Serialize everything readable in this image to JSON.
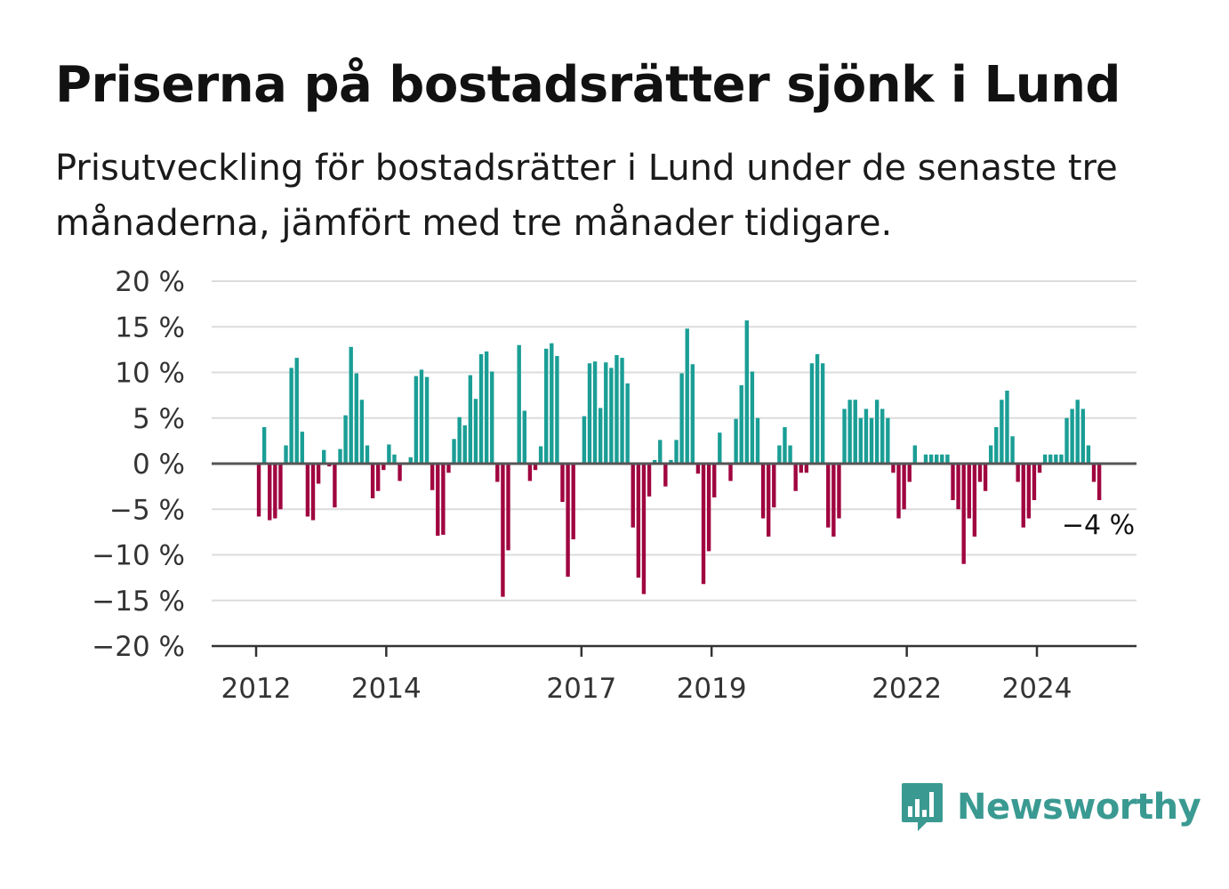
{
  "header": {
    "title": "Priserna på bostadsrätter sjönk i Lund",
    "subtitle": "Prisutveckling för bostadsrätter i Lund under de senaste tre månaderna, jämfört med tre månader tidigare."
  },
  "brand": {
    "name": "Newsworthy",
    "icon": "newsworthy-bar-chart-icon"
  },
  "colors": {
    "positive": "#1a9e96",
    "negative": "#a00540",
    "text": "#111111"
  },
  "chart_data": {
    "type": "bar",
    "title": "Priserna på bostadsrätter sjönk i Lund",
    "subtitle": "Prisutveckling för bostadsrätter i Lund under de senaste tre månaderna, jämfört med tre månader tidigare.",
    "ylim": [
      -20,
      20
    ],
    "yticks": [
      20,
      15,
      10,
      5,
      0,
      -5,
      -10,
      -15,
      -20
    ],
    "ytick_labels": [
      "20 %",
      "15 %",
      "10 %",
      "5 %",
      "0 %",
      "−5 %",
      "−10 %",
      "−15 %",
      "−20 %"
    ],
    "xticks": [
      2012,
      2014,
      2017,
      2019,
      2022,
      2024
    ],
    "xtick_labels": [
      "2012",
      "2014",
      "2017",
      "2019",
      "2022",
      "2024"
    ],
    "x_start": "2012-01",
    "grid": true,
    "unit": "%",
    "last_label": "−4 %",
    "values": [
      -5.8,
      4.0,
      -6.2,
      -6.0,
      -5.0,
      2.0,
      10.5,
      11.6,
      3.5,
      -5.8,
      -6.2,
      -2.2,
      1.5,
      -0.3,
      -4.8,
      1.6,
      5.3,
      12.8,
      9.9,
      7.0,
      2.0,
      -3.8,
      -3.0,
      -0.7,
      2.1,
      1.0,
      -1.9,
      0.0,
      0.7,
      9.6,
      10.3,
      9.5,
      -2.9,
      -7.9,
      -7.8,
      -1.0,
      2.7,
      5.1,
      4.2,
      9.7,
      7.1,
      12.0,
      12.3,
      10.1,
      -2.0,
      -14.6,
      -9.5,
      0.0,
      13.0,
      5.8,
      -1.9,
      -0.7,
      1.9,
      12.6,
      13.2,
      11.8,
      -4.2,
      -12.4,
      -8.3,
      0.0,
      5.2,
      11.0,
      11.2,
      6.1,
      11.1,
      10.5,
      11.9,
      11.6,
      8.8,
      -7.0,
      -12.5,
      -14.3,
      -3.6,
      0.4,
      2.6,
      -2.5,
      0.4,
      2.6,
      9.9,
      14.8,
      10.9,
      -1.1,
      -13.2,
      -9.6,
      -3.7,
      3.4,
      0.0,
      -1.9,
      4.9,
      8.6,
      15.7,
      10.1,
      5.0,
      -6.0,
      -8.0,
      -4.8,
      2.0,
      4.0,
      2.0,
      -3.0,
      -1.0,
      -1.0,
      11.0,
      12.0,
      11.0,
      -7.0,
      -8.0,
      -6.0,
      6.0,
      7.0,
      7.0,
      5.0,
      6.0,
      5.0,
      7.0,
      6.0,
      5.0,
      -1.0,
      -6.0,
      -5.0,
      -2.0,
      2.0,
      0.0,
      1.0,
      1.0,
      1.0,
      1.0,
      1.0,
      -4.0,
      -5.0,
      -11.0,
      -6.0,
      -8.0,
      -2.0,
      -3.0,
      2.0,
      4.0,
      7.0,
      8.0,
      3.0,
      -2.0,
      -7.0,
      -6.0,
      -4.0,
      -1.0,
      1.0,
      1.0,
      1.0,
      1.0,
      5.0,
      6.0,
      7.0,
      6.0,
      2.0,
      -2.0,
      -4.0
    ]
  }
}
